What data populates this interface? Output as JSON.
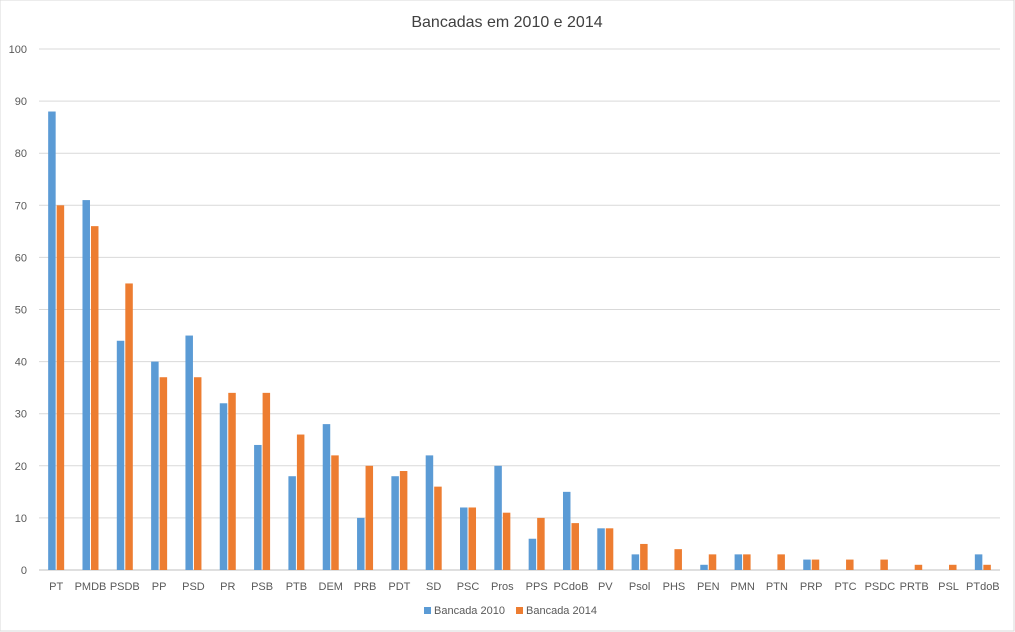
{
  "chart_data": {
    "type": "bar",
    "title": "Bancadas em 2010 e 2014",
    "xlabel": "",
    "ylabel": "",
    "ylim": [
      0,
      100
    ],
    "yticks": [
      0,
      10,
      20,
      30,
      40,
      50,
      60,
      70,
      80,
      90,
      100
    ],
    "grid": true,
    "legend_position": "bottom",
    "categories": [
      "PT",
      "PMDB",
      "PSDB",
      "PP",
      "PSD",
      "PR",
      "PSB",
      "PTB",
      "DEM",
      "PRB",
      "PDT",
      "SD",
      "PSC",
      "Pros",
      "PPS",
      "PCdoB",
      "PV",
      "Psol",
      "PHS",
      "PEN",
      "PMN",
      "PTN",
      "PRP",
      "PTC",
      "PSDC",
      "PRTB",
      "PSL",
      "PTdoB"
    ],
    "series": [
      {
        "name": "Bancada 2010",
        "color": "#5B9BD5",
        "values": [
          88,
          71,
          44,
          40,
          45,
          32,
          24,
          18,
          28,
          10,
          18,
          22,
          12,
          20,
          6,
          15,
          8,
          3,
          0,
          1,
          3,
          0,
          2,
          0,
          0,
          0,
          0,
          3
        ]
      },
      {
        "name": "Bancada 2014",
        "color": "#ED7D31",
        "values": [
          70,
          66,
          55,
          37,
          37,
          34,
          34,
          26,
          22,
          20,
          19,
          16,
          12,
          11,
          10,
          9,
          8,
          5,
          4,
          3,
          3,
          3,
          2,
          2,
          2,
          1,
          1,
          1
        ]
      }
    ]
  }
}
